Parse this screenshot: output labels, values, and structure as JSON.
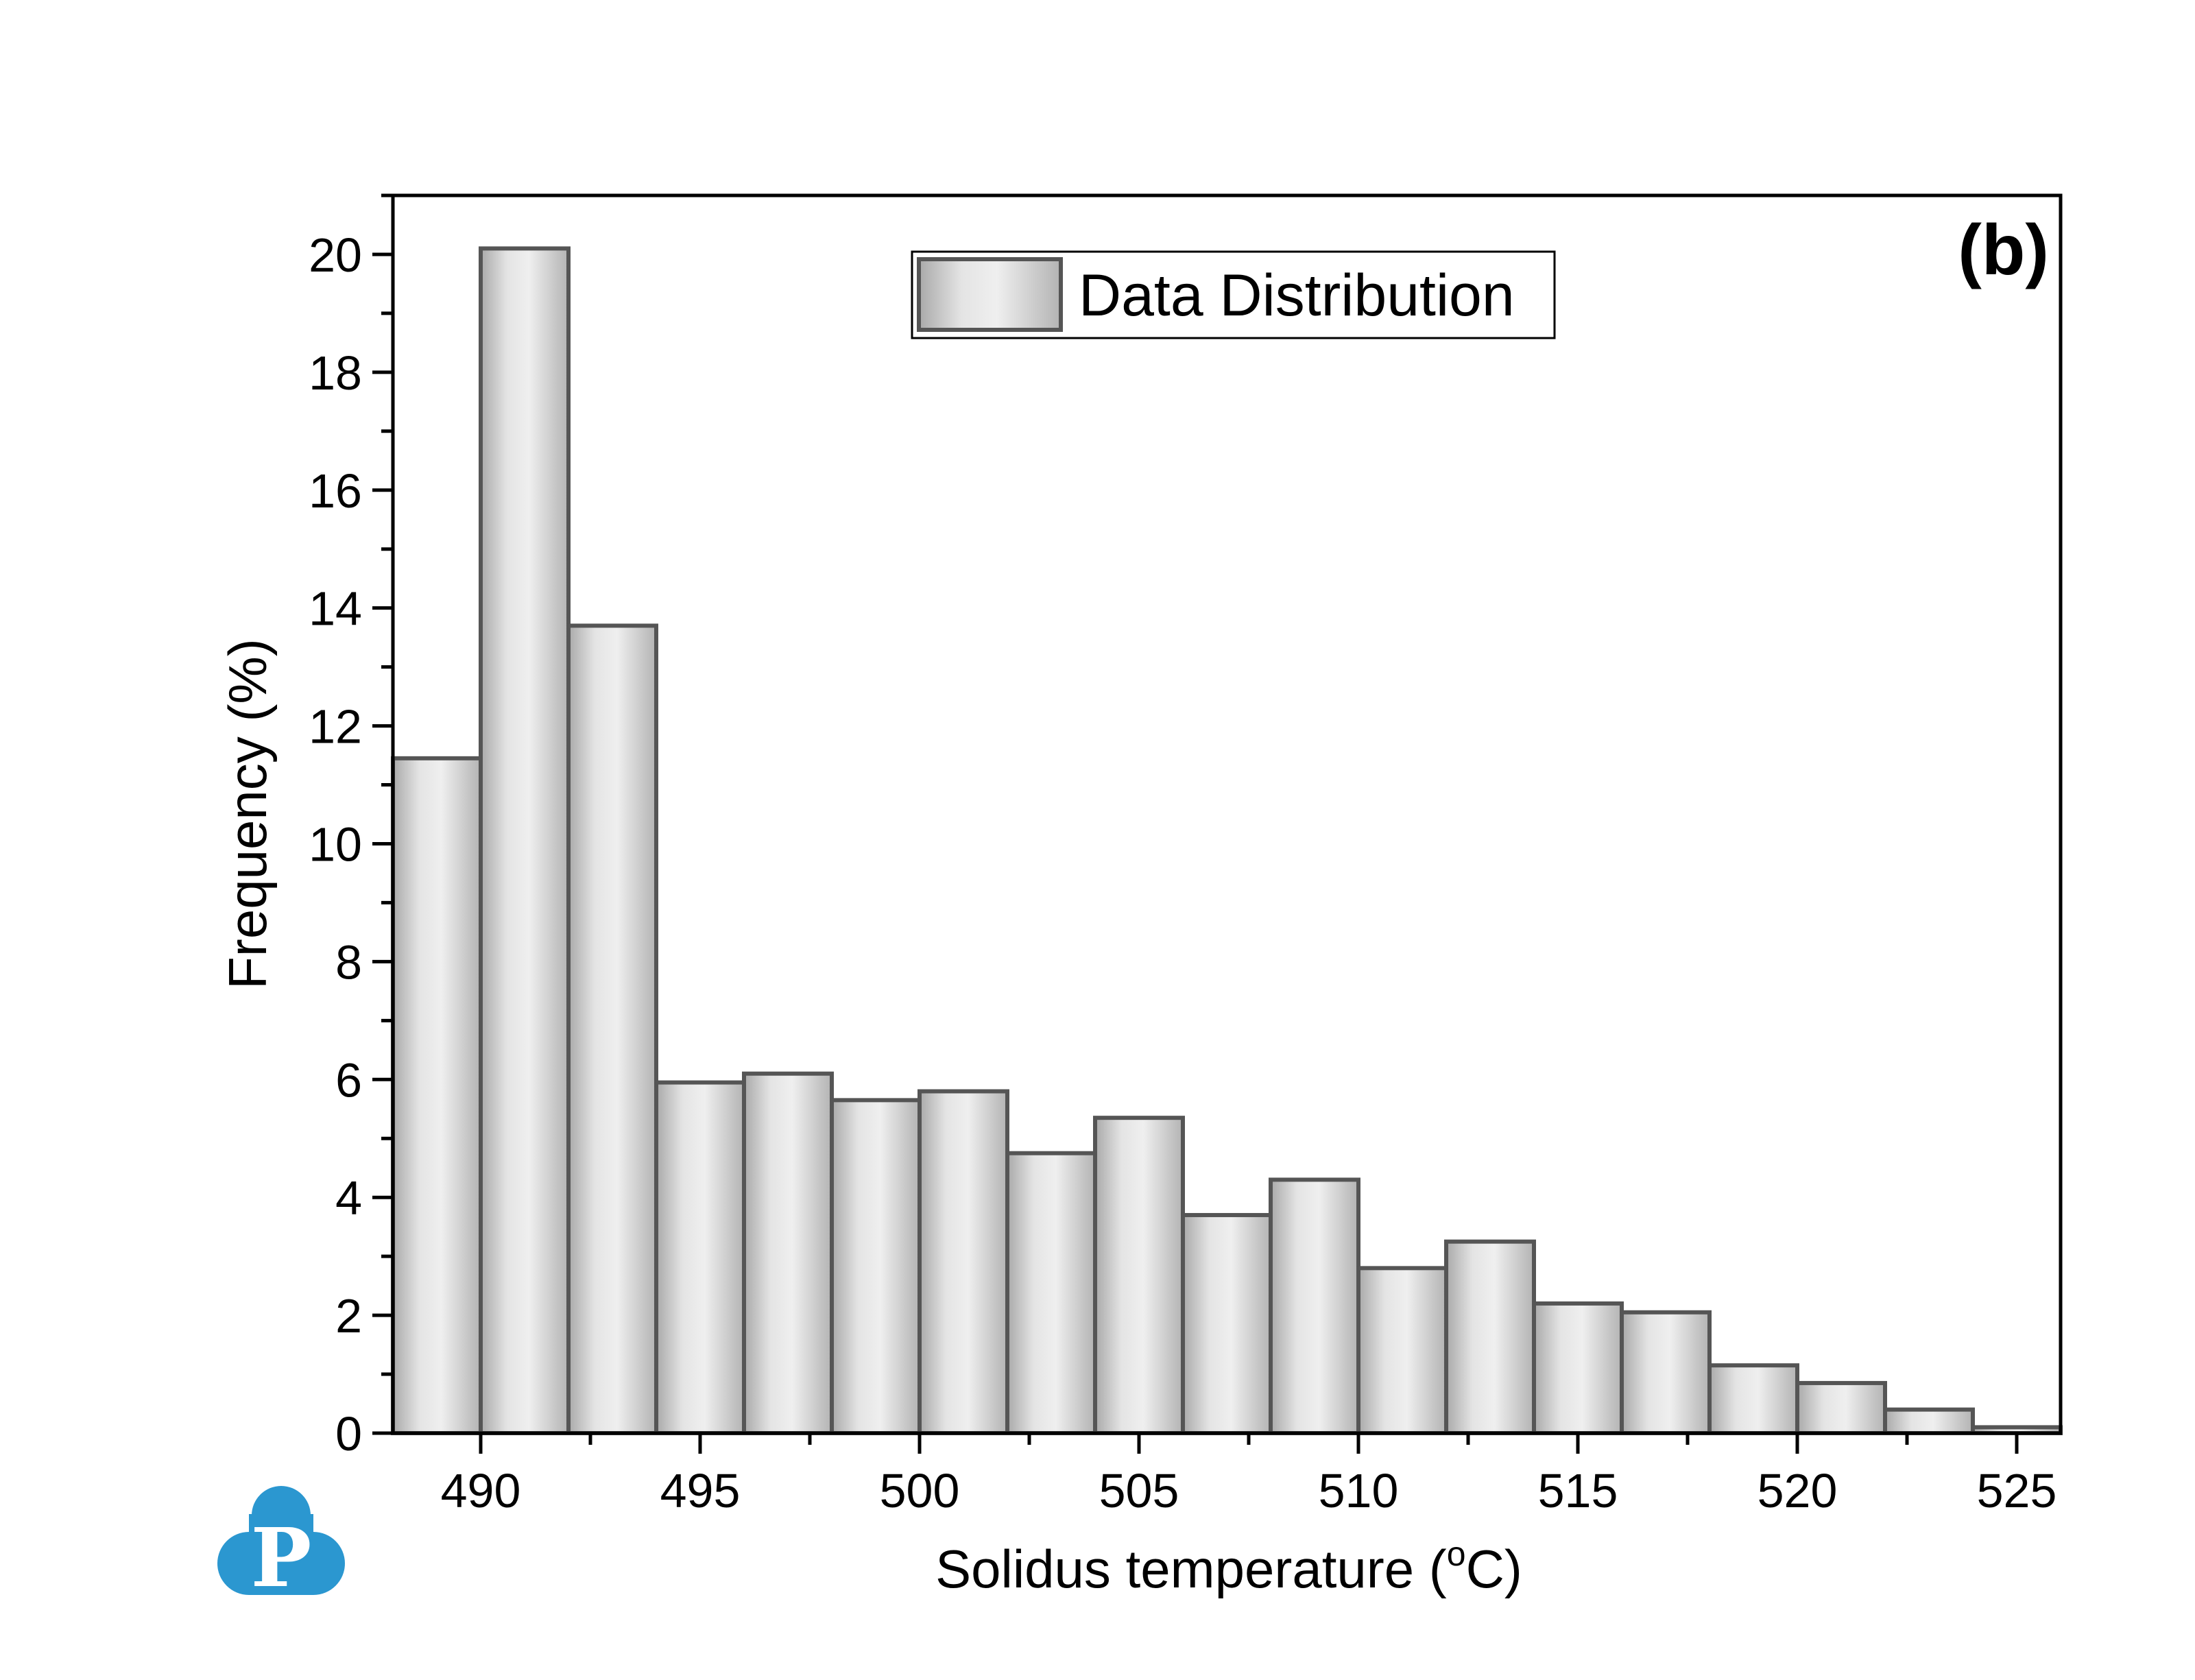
{
  "chart_data": {
    "type": "bar",
    "panel_label": "(b)",
    "xlabel": "Solidus temperature (",
    "xlabel_sup": "o",
    "xlabel_suffix": "C)",
    "ylabel": "Frequency (%)",
    "xlim": [
      488,
      526
    ],
    "ylim": [
      0,
      21
    ],
    "x_ticks": [
      490,
      495,
      500,
      505,
      510,
      515,
      520,
      525
    ],
    "y_ticks": [
      0,
      2,
      4,
      6,
      8,
      10,
      12,
      14,
      16,
      18,
      20
    ],
    "bin_width": 2,
    "bin_starts": [
      488,
      490,
      492,
      494,
      496,
      498,
      500,
      502,
      504,
      506,
      508,
      510,
      512,
      514,
      516,
      518,
      520,
      522,
      524
    ],
    "values": [
      11.45,
      20.1,
      13.7,
      5.95,
      6.1,
      5.65,
      5.8,
      4.75,
      5.35,
      3.7,
      4.3,
      2.8,
      3.25,
      2.2,
      2.05,
      1.15,
      0.85,
      0.4,
      0.1
    ],
    "legend": [
      "Data Distribution"
    ],
    "legend_position": "top-center",
    "grid": false,
    "colors": {
      "bar_edge": "#555555",
      "bar_center": "#ececec",
      "bar_side": "#a9a9a9",
      "axis": "#000000"
    }
  },
  "logo": {
    "letter": "P",
    "color": "#2b97d0"
  }
}
